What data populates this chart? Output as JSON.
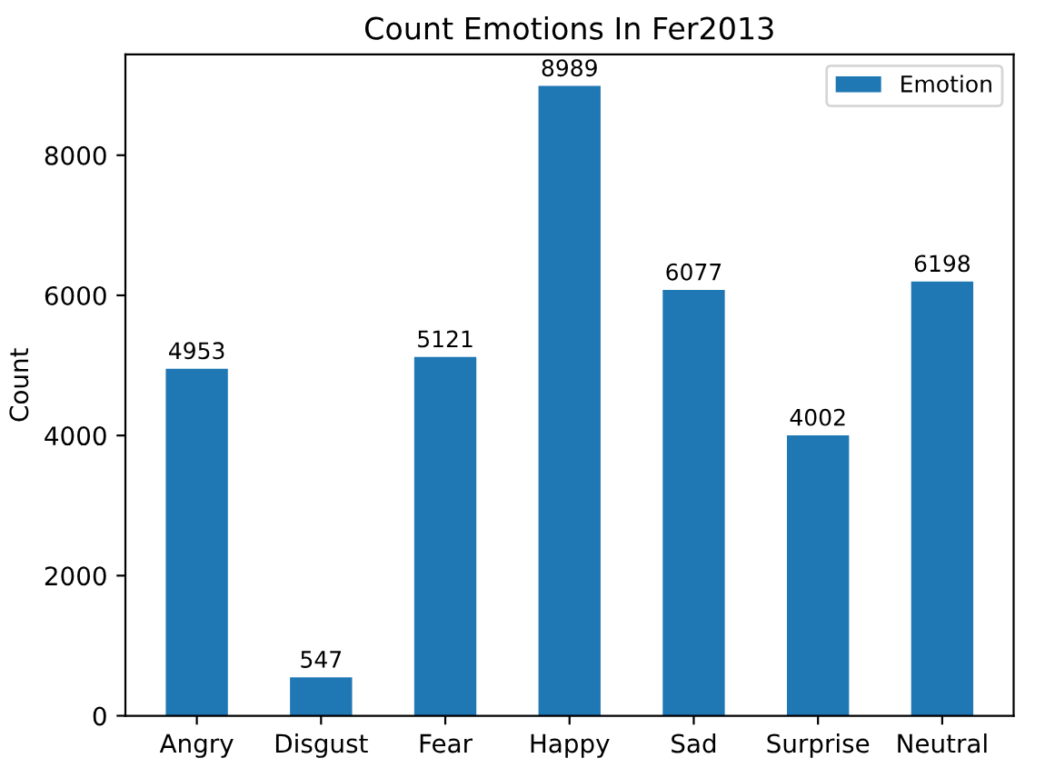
{
  "chart_data": {
    "type": "bar",
    "title": "Count Emotions In Fer2013",
    "ylabel": "Count",
    "categories": [
      "Angry",
      "Disgust",
      "Fear",
      "Happy",
      "Sad",
      "Surprise",
      "Neutral"
    ],
    "series": [
      {
        "name": "Emotion",
        "color": "#1f77b4",
        "values": [
          4953,
          547,
          5121,
          8989,
          6077,
          4002,
          6198
        ]
      }
    ],
    "data_labels": true,
    "ylim": [
      0,
      9438
    ],
    "yticks": [
      0,
      2000,
      4000,
      6000,
      8000
    ],
    "legend": "top right",
    "grid": false
  }
}
